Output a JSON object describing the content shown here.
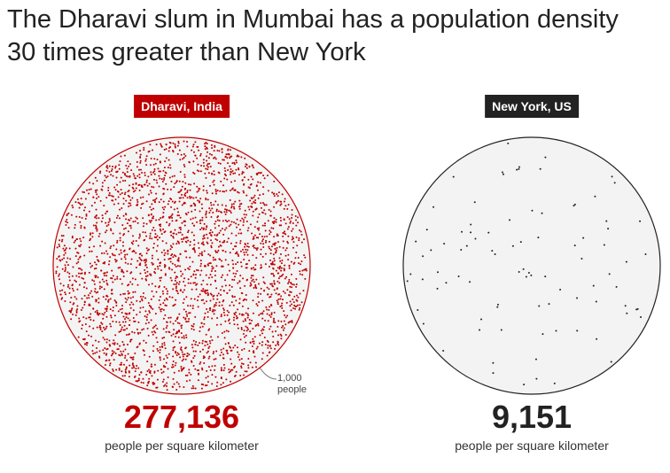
{
  "chart_data": {
    "type": "dot-density",
    "title": "The Dharavi slum in Mumbai has a population density 30 times greater than New York",
    "unit_label": "people per square kilometer",
    "annotation": "1,000 people",
    "series": [
      {
        "name": "Dharavi, India",
        "color": "#c00000",
        "value": 277136,
        "value_label": "277,136"
      },
      {
        "name": "New York, US",
        "color": "#222222",
        "value": 9151,
        "value_label": "9,151"
      }
    ]
  }
}
